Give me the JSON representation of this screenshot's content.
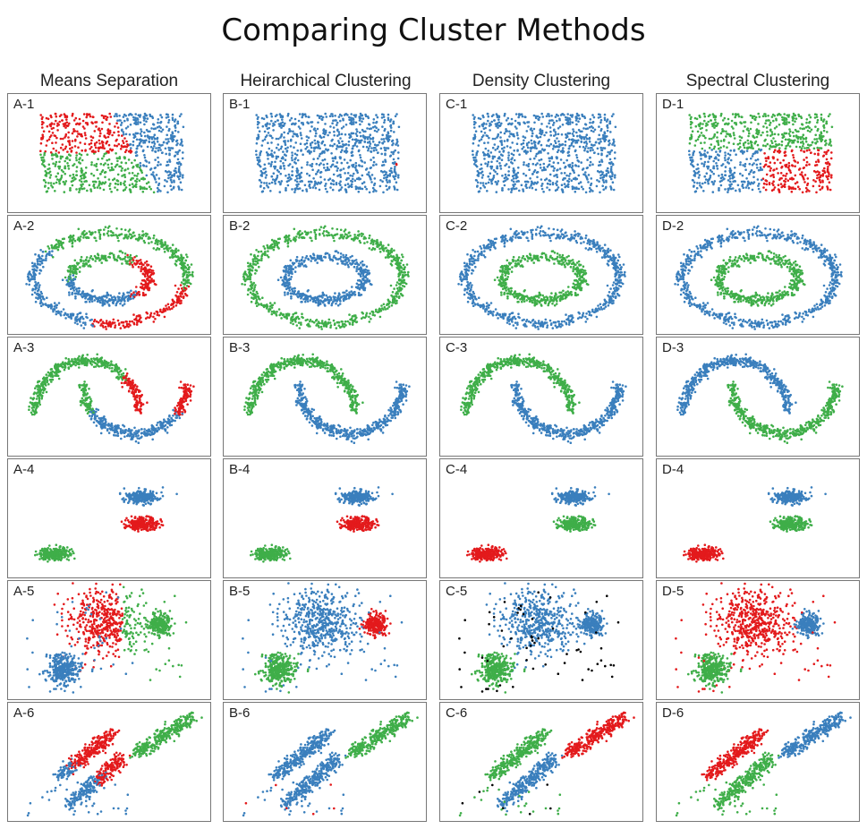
{
  "title": "Comparing Cluster Methods",
  "colors": {
    "blue": "#3a7fbd",
    "red": "#e31a1c",
    "green": "#3fae49",
    "noise": "#000000"
  },
  "columns": [
    "Means Separation",
    "Heirarchical Clustering",
    "Density Clustering",
    "Spectral Clustering"
  ],
  "panel_labels": [
    [
      "A-1",
      "B-1",
      "C-1",
      "D-1"
    ],
    [
      "A-2",
      "B-2",
      "C-2",
      "D-2"
    ],
    [
      "A-3",
      "B-3",
      "C-3",
      "D-3"
    ],
    [
      "A-4",
      "B-4",
      "C-4",
      "D-4"
    ],
    [
      "A-5",
      "B-5",
      "C-5",
      "D-5"
    ],
    [
      "A-6",
      "B-6",
      "C-6",
      "D-6"
    ]
  ],
  "chart_data": {
    "type": "scatter",
    "grid": false,
    "legend": "none",
    "datasets": [
      "uniform-rectangle",
      "concentric-rings",
      "two-moons",
      "three-blobs",
      "noisy-blobs",
      "anisotropic-streaks"
    ],
    "assignments": [
      [
        "split-three",
        "mostly-one-cluster",
        "one-cluster",
        "split-three"
      ],
      [
        "mixed",
        "inner-outer",
        "inner-outer",
        "inner-outer"
      ],
      [
        "mixed",
        "by-moon",
        "by-moon",
        "by-moon"
      ],
      [
        "three-blobs",
        "three-blobs",
        "three-blobs",
        "three-blobs"
      ],
      [
        "mixed",
        "blobs",
        "blobs-with-noise",
        "blobs"
      ],
      [
        "mixed",
        "mixed",
        "by-streak",
        "by-streak"
      ]
    ]
  }
}
